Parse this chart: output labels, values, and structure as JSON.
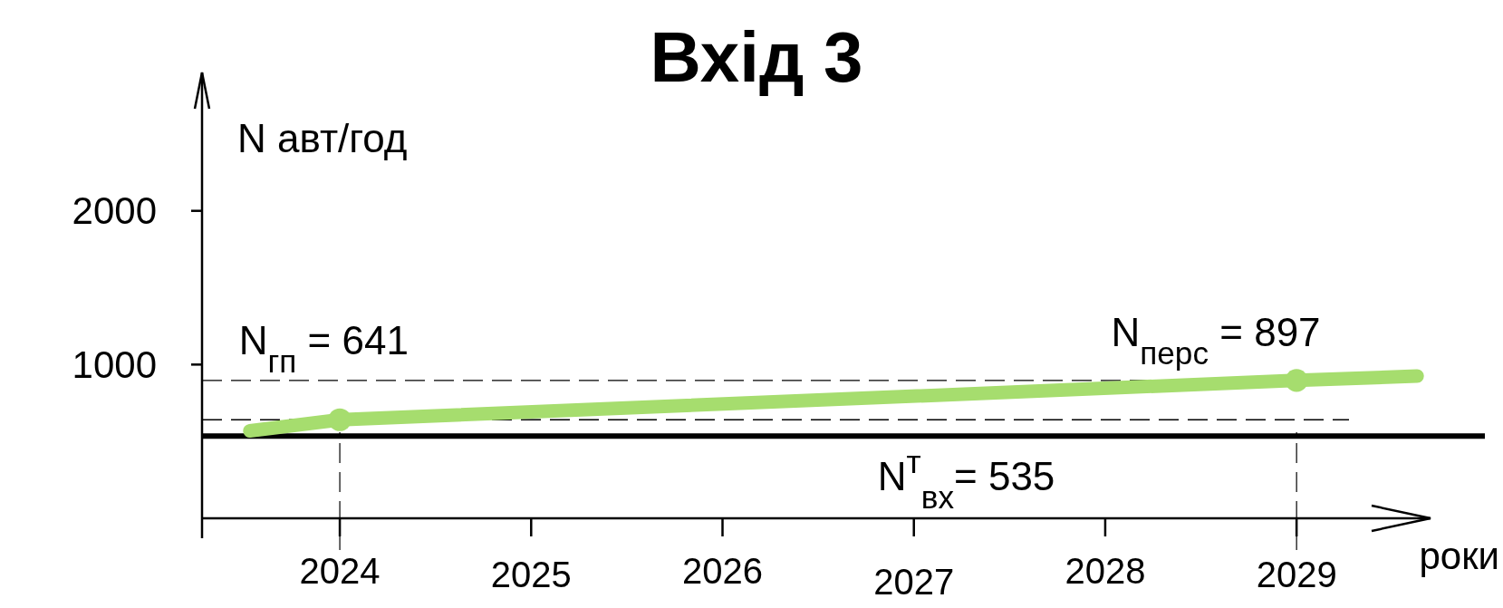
{
  "chart_data": {
    "type": "line",
    "title": "Вхід 3",
    "xlabel": "роки",
    "ylabel": "N авт/год",
    "xlim": [
      2023.28,
      2029.7
    ],
    "ylim": [
      0,
      2900
    ],
    "xticks": [
      2024,
      2025,
      2026,
      2027,
      2028,
      2029
    ],
    "yticks": [
      {
        "value": 0,
        "label": null
      },
      1000,
      2000
    ],
    "grid": false,
    "series": [
      {
        "color": "#a6dd6e",
        "marker": "none",
        "x": [
          2023.53,
          2024,
          2029,
          2029.63
        ],
        "values": [
          569,
          641,
          897,
          925
        ]
      },
      {
        "type": "scatter",
        "color": "#a6dd6e",
        "marker": "circle",
        "x": [
          2024,
          2029
        ],
        "values": [
          641,
          897
        ]
      }
    ],
    "ref_lines": [
      {
        "axis": "y",
        "value": 897,
        "label": "N$_{перс}$ = 897",
        "color": "#000000",
        "line_style": "dashed"
      },
      {
        "axis": "y",
        "value": 641,
        "label": "N$_{гп}$  = 641",
        "color": "#000000",
        "line_style": "dashed"
      },
      {
        "axis": "y",
        "value": 535,
        "label": "N$^{т}$$_{вх}$= 535",
        "color": "#000000",
        "line_style": "solid"
      },
      {
        "axis": "x",
        "value": 2024,
        "color": "#000000",
        "line_style": "dashed"
      },
      {
        "axis": "x",
        "value": 2029,
        "color": "#000000",
        "line_style": "dashed"
      }
    ]
  }
}
